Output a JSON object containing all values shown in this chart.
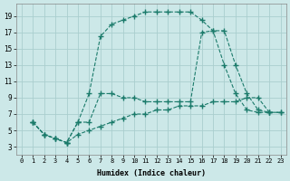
{
  "xlabel": "Humidex (Indice chaleur)",
  "bg_color": "#cce8e8",
  "line_color": "#1a7a6a",
  "grid_color": "#aacece",
  "xlim": [
    -0.5,
    23.5
  ],
  "ylim": [
    2,
    20.5
  ],
  "xticks": [
    0,
    1,
    2,
    3,
    4,
    5,
    6,
    7,
    8,
    9,
    10,
    11,
    12,
    13,
    14,
    15,
    16,
    17,
    18,
    19,
    20,
    21,
    22,
    23
  ],
  "yticks": [
    3,
    5,
    7,
    9,
    11,
    13,
    15,
    17,
    19
  ],
  "series": [
    {
      "x": [
        1,
        2,
        3,
        4,
        5,
        6,
        7,
        8,
        9,
        10,
        11,
        12,
        13,
        14,
        15,
        16,
        17,
        18,
        19,
        20,
        21,
        22,
        23
      ],
      "y": [
        6,
        4.5,
        4,
        3.5,
        6,
        9.5,
        16.5,
        18,
        18.5,
        19,
        19.5,
        19.5,
        19.5,
        19.5,
        19.5,
        18.5,
        17.2,
        17.2,
        13,
        9.5,
        7.5,
        7.2,
        7.2
      ]
    },
    {
      "x": [
        1,
        2,
        3,
        4,
        5,
        6,
        7,
        8,
        9,
        10,
        11,
        12,
        13,
        14,
        15,
        16,
        17,
        18,
        19,
        20,
        21,
        22
      ],
      "y": [
        6,
        4.5,
        4,
        3.5,
        6,
        6,
        9.5,
        9.5,
        9,
        9,
        8.5,
        8.5,
        8.5,
        8.5,
        8.5,
        17,
        17.2,
        13,
        9.5,
        7.5,
        7.2,
        7.2
      ]
    },
    {
      "x": [
        1,
        2,
        3,
        4,
        5,
        6,
        7,
        8,
        9,
        10,
        11,
        12,
        13,
        14,
        15,
        16,
        17,
        18,
        19,
        20,
        21,
        22,
        23
      ],
      "y": [
        6,
        4.5,
        4,
        3.5,
        4.5,
        5,
        5.5,
        6,
        6.5,
        7,
        7,
        7.5,
        7.5,
        8,
        8,
        8,
        8.5,
        8.5,
        8.5,
        9,
        9,
        7.2,
        7.2
      ]
    }
  ]
}
